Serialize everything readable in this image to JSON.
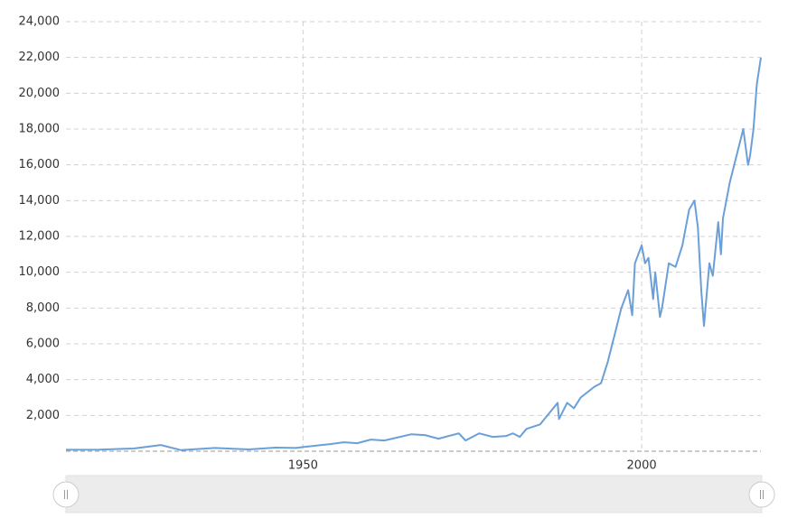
{
  "chart_data": {
    "type": "line",
    "x": [
      1915,
      1920,
      1925,
      1929,
      1932,
      1937,
      1942,
      1946,
      1949,
      1950,
      1954,
      1956,
      1958,
      1960,
      1962,
      1966,
      1968,
      1970,
      1973,
      1974,
      1976,
      1978,
      1980,
      1981,
      1982,
      1983,
      1985,
      1987.6,
      1987.8,
      1989,
      1990,
      1991,
      1993,
      1994,
      1995,
      1996,
      1997,
      1998,
      1998.6,
      1999,
      2000,
      2000.5,
      2001,
      2001.7,
      2002,
      2002.7,
      2003,
      2004,
      2005,
      2006,
      2007,
      2007.8,
      2008.3,
      2008.8,
      2009.2,
      2010,
      2010.5,
      2011.3,
      2011.7,
      2012,
      2013,
      2014,
      2015,
      2015.7,
      2016,
      2016.5,
      2017,
      2017.6
    ],
    "series": [
      {
        "color": "#6a9fd8",
        "values": [
          80,
          90,
          150,
          350,
          60,
          180,
          100,
          200,
          180,
          230,
          400,
          500,
          450,
          650,
          600,
          950,
          900,
          700,
          1000,
          600,
          1000,
          800,
          850,
          1000,
          800,
          1250,
          1500,
          2700,
          1800,
          2700,
          2400,
          3000,
          3600,
          3800,
          5000,
          6500,
          8000,
          9000,
          7600,
          10500,
          11500,
          10500,
          10800,
          8500,
          10000,
          7500,
          8000,
          10500,
          10300,
          11500,
          13500,
          14000,
          12500,
          9000,
          7000,
          10500,
          9800,
          12800,
          11000,
          13000,
          15000,
          16500,
          18000,
          16000,
          16500,
          18000,
          20500,
          22000
        ]
      }
    ],
    "xlim": [
      1915,
      2017.6
    ],
    "xticks": [
      1950,
      2000
    ],
    "ylim": [
      0,
      24000
    ],
    "yticks": [
      {
        "value": 2000,
        "label": "2,000"
      },
      {
        "value": 4000,
        "label": "4,000"
      },
      {
        "value": 6000,
        "label": "6,000"
      },
      {
        "value": 8000,
        "label": "8,000"
      },
      {
        "value": 10000,
        "label": "10,000"
      },
      {
        "value": 12000,
        "label": "12,000"
      },
      {
        "value": 14000,
        "label": "14,000"
      },
      {
        "value": 16000,
        "label": "16,000"
      },
      {
        "value": 18000,
        "label": "18,000"
      },
      {
        "value": 20000,
        "label": "20,000"
      },
      {
        "value": 22000,
        "label": "22,000"
      },
      {
        "value": 24000,
        "label": "24,000"
      }
    ],
    "grid": true
  }
}
